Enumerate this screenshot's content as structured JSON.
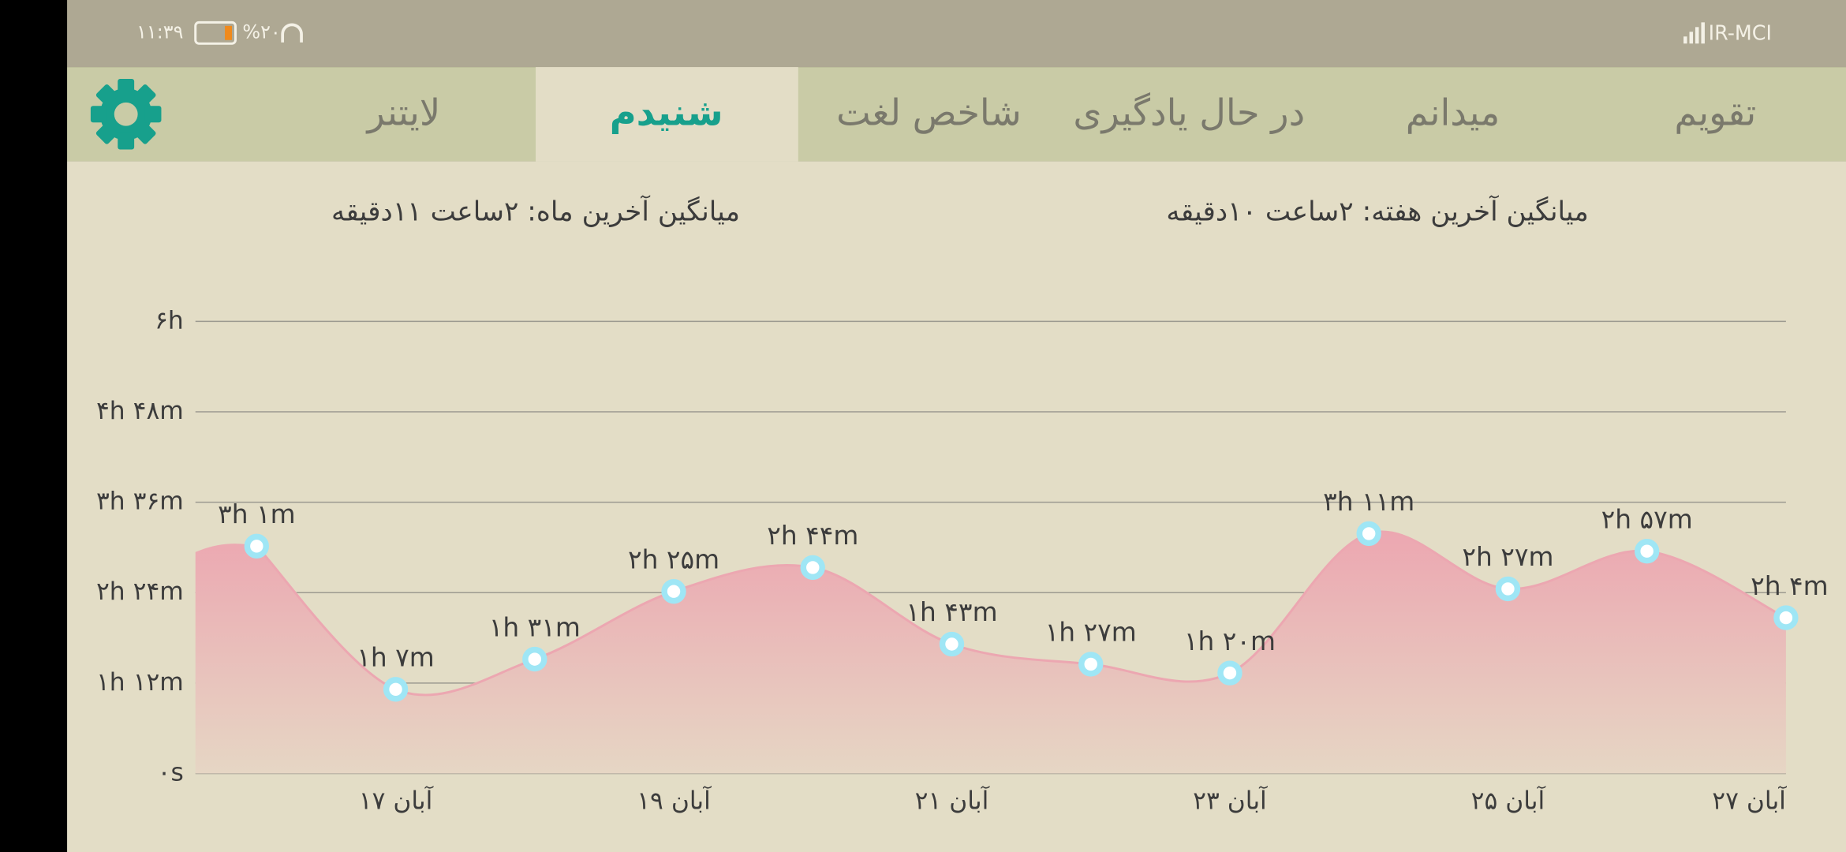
{
  "status_bar": {
    "time": "۱۱:۳۹",
    "battery": "%۲۰",
    "carrier": "IR-MCI"
  },
  "tabs": [
    "تقویم",
    "میدانم",
    "در حال یادگیری",
    "شاخص لغت",
    "شنیدم",
    "لایتنر"
  ],
  "selected_tab": "شنیدم",
  "averages": {
    "week": "میانگین آخرین هفته: ۲ساعت  ۱۰دقیقه",
    "month": "میانگین آخرین ماه: ۲ساعت  ۱۱دقیقه"
  },
  "chart_data": {
    "type": "area",
    "categories": [
      null,
      "۱۷ آبان",
      null,
      "۱۹ آبان",
      null,
      "۲۱ آبان",
      null,
      "۲۳ آبان",
      null,
      "۲۵ آبان",
      null,
      "۲۷ آبان"
    ],
    "values": [
      181,
      67,
      91,
      145,
      164,
      103,
      87,
      80,
      191,
      147,
      177,
      124
    ],
    "value_labels": [
      "۳h ۱m",
      "۱h ۷m",
      "۱h ۳۱m",
      "۲h ۲۵m",
      "۲h ۴۴m",
      "۱h ۴۳m",
      "۱h ۲۷m",
      "۱h ۲۰m",
      "۳h ۱۱m",
      "۲h ۲۷m",
      "۲h ۵۷m",
      "۲h ۴m"
    ],
    "color": "#eca7b1",
    "ylim": [
      0,
      360
    ],
    "yticks": [
      {
        "value": 0,
        "label": "۰s"
      },
      {
        "value": 72,
        "label": "۱h ۱۲m"
      },
      {
        "value": 144,
        "label": "۲h ۲۴m"
      },
      {
        "value": 216,
        "label": "۳h ۳۶m"
      },
      {
        "value": 288,
        "label": "۴h ۴۸m"
      },
      {
        "value": 360,
        "label": "۶h"
      }
    ],
    "grid": true
  }
}
